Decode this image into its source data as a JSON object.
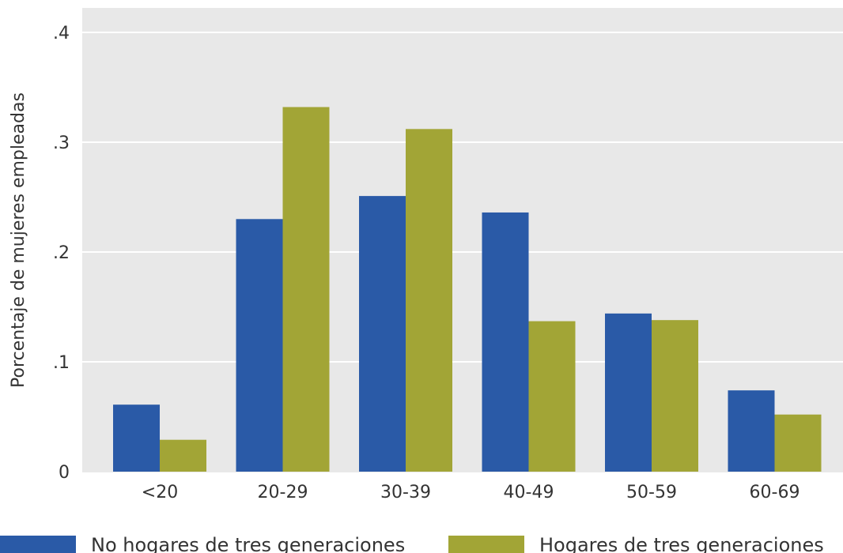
{
  "chart_data": {
    "type": "bar",
    "categories": [
      "<20",
      "20-29",
      "30-39",
      "40-49",
      "50-59",
      "60-69"
    ],
    "series": [
      {
        "name": "No hogares de tres generaciones",
        "values": [
          0.061,
          0.23,
          0.251,
          0.236,
          0.144,
          0.074
        ],
        "color": "#2a5aa7"
      },
      {
        "name": "Hogares de tres generaciones",
        "values": [
          0.029,
          0.332,
          0.312,
          0.137,
          0.138,
          0.052
        ],
        "color": "#a2a536"
      }
    ],
    "title": "",
    "xlabel": "",
    "ylabel": "Porcentaje de mujeres empleadas",
    "ylim": [
      0,
      0.42
    ],
    "yticks": [
      0,
      0.1,
      0.2,
      0.3,
      0.4
    ],
    "ytick_labels": [
      "0",
      ".1",
      ".2",
      ".3",
      ".4"
    ],
    "grid": true,
    "background": "#e8e8e8",
    "legend_position": "bottom"
  }
}
